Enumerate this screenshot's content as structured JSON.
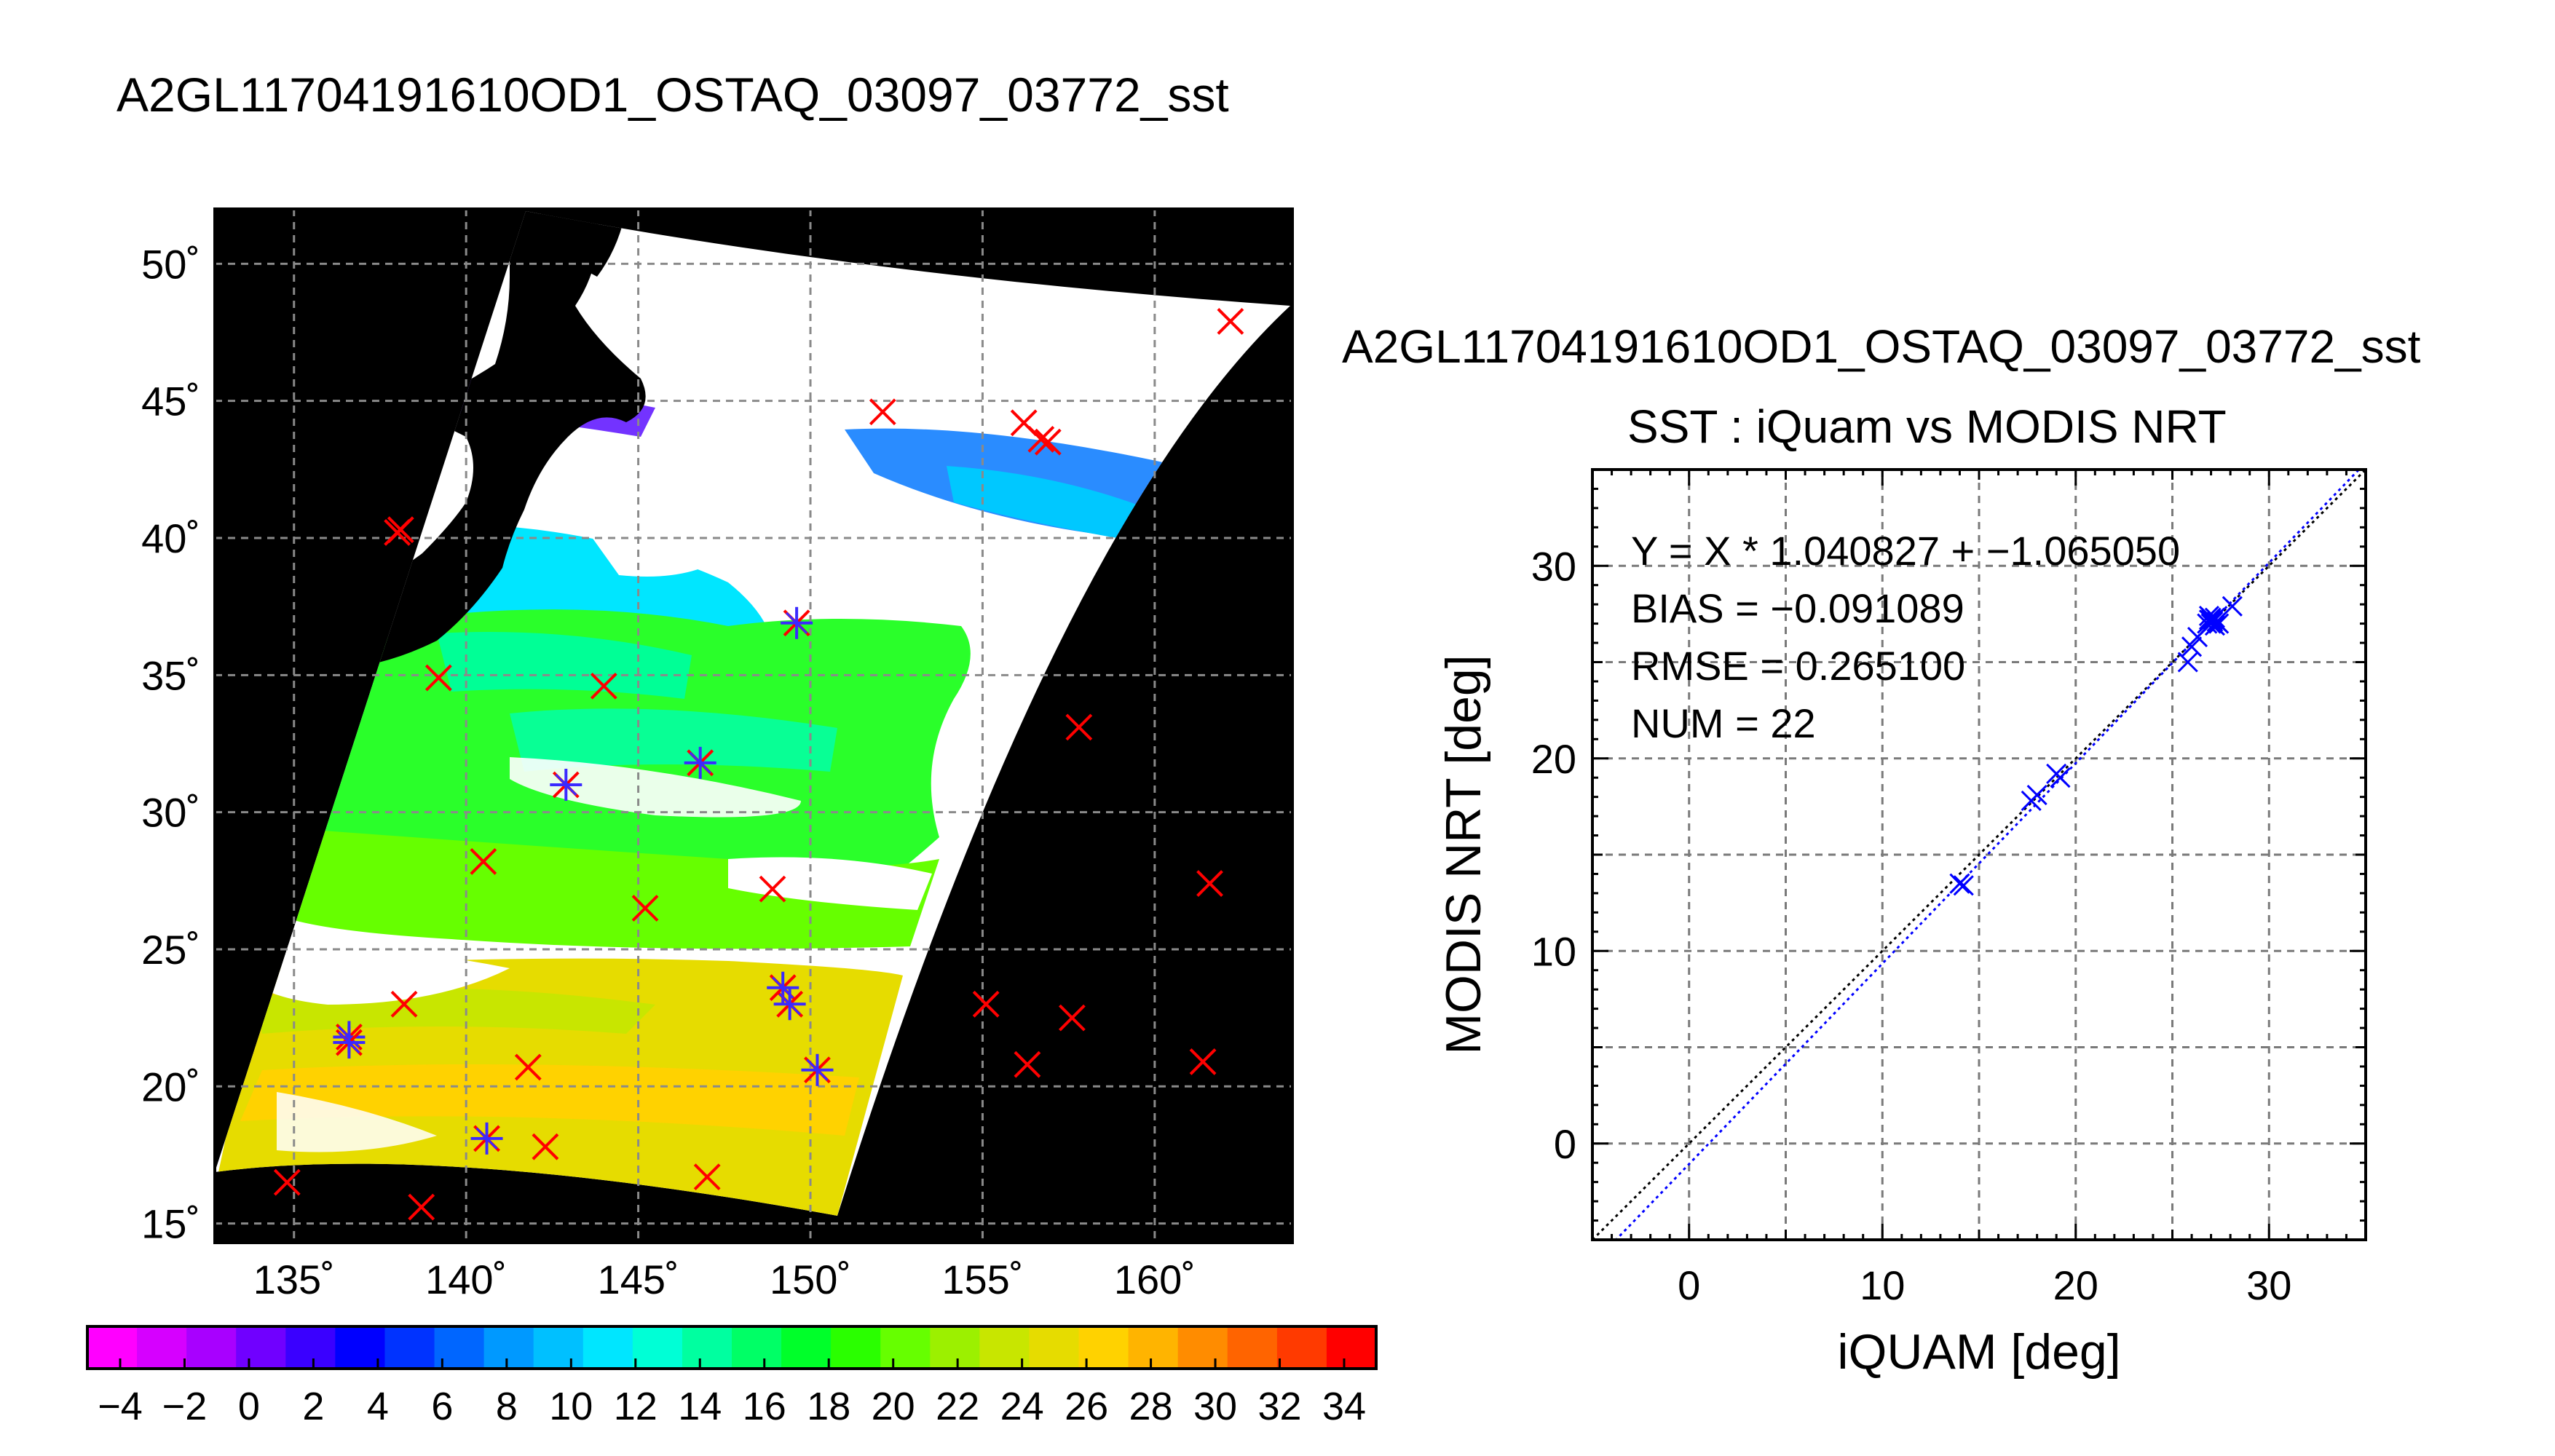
{
  "title": "A2GL11704191610OD1_OSTAQ_03097_03772_sst",
  "map": {
    "lat_ticks": [
      "15˚",
      "20˚",
      "25˚",
      "30˚",
      "35˚",
      "40˚",
      "45˚",
      "50˚"
    ],
    "lat_values": [
      15,
      20,
      25,
      30,
      35,
      40,
      45,
      50
    ],
    "lon_ticks": [
      "135˚",
      "140˚",
      "145˚",
      "150˚",
      "155˚",
      "160˚"
    ],
    "lon_values": [
      135,
      140,
      145,
      150,
      155,
      160
    ],
    "lon_range": [
      132.7,
      164.0
    ],
    "lat_range": [
      14.3,
      52.0
    ],
    "markers_red": [
      [
        162.2,
        47.9
      ],
      [
        152.1,
        44.6
      ],
      [
        156.2,
        44.2
      ],
      [
        156.9,
        43.5
      ],
      [
        156.7,
        43.6
      ],
      [
        138.0,
        40.2
      ],
      [
        138.1,
        40.3
      ],
      [
        139.2,
        34.9
      ],
      [
        144.0,
        34.6
      ],
      [
        157.8,
        33.1
      ],
      [
        140.5,
        28.2
      ],
      [
        145.2,
        26.5
      ],
      [
        148.9,
        27.2
      ],
      [
        161.6,
        27.4
      ],
      [
        138.2,
        23.0
      ],
      [
        155.1,
        23.0
      ],
      [
        157.6,
        22.5
      ],
      [
        156.3,
        20.8
      ],
      [
        161.4,
        20.9
      ],
      [
        141.8,
        20.7
      ],
      [
        142.3,
        17.8
      ],
      [
        147.0,
        16.7
      ],
      [
        134.8,
        16.5
      ],
      [
        138.7,
        15.6
      ]
    ],
    "markers_star": [
      [
        149.6,
        36.9
      ],
      [
        142.9,
        31.0
      ],
      [
        146.8,
        31.8
      ],
      [
        136.6,
        21.8
      ],
      [
        136.6,
        21.6
      ],
      [
        149.2,
        23.6
      ],
      [
        149.4,
        23.0
      ],
      [
        150.2,
        20.6
      ],
      [
        140.6,
        18.1
      ]
    ]
  },
  "colorbar": {
    "tick_labels": [
      "−4",
      "−2",
      "0",
      "2",
      "4",
      "6",
      "8",
      "10",
      "12",
      "14",
      "16",
      "18",
      "20",
      "22",
      "24",
      "26",
      "28",
      "30",
      "32",
      "34"
    ],
    "colors": [
      "#ff00ff",
      "#d600ff",
      "#a800ff",
      "#7000ff",
      "#3a00ff",
      "#0000ff",
      "#0033ff",
      "#0066ff",
      "#0099ff",
      "#00c0ff",
      "#00e6ff",
      "#00ffd6",
      "#00ffa0",
      "#00ff66",
      "#00ff2a",
      "#2aff00",
      "#66ff00",
      "#9cf000",
      "#c8e600",
      "#e6dc00",
      "#ffd200",
      "#ffb400",
      "#ff8c00",
      "#ff6400",
      "#ff3a00",
      "#ff0000"
    ]
  },
  "scatter": {
    "title": "A2GL11704191610OD1_OSTAQ_03097_03772_sst",
    "subtitle": "SST : iQuam vs MODIS NRT",
    "xlabel": "iQUAM [deg]",
    "ylabel": "MODIS NRT [deg]",
    "annotations": [
      "Y = X * 1.040827 + −1.065050",
      "BIAS = −0.091089",
      "RMSE = 0.265100",
      "NUM = 22"
    ]
  },
  "chart_data": {
    "type": "scatter",
    "title": "SST : iQuam vs MODIS NRT",
    "xlabel": "iQUAM [deg]",
    "ylabel": "MODIS NRT [deg]",
    "xlim": [
      -5,
      35
    ],
    "ylim": [
      -5,
      35
    ],
    "x_ticks": [
      0,
      10,
      20,
      30
    ],
    "y_ticks": [
      0,
      10,
      20,
      30
    ],
    "grid": true,
    "series": [
      {
        "x": [
          14.0,
          14.2,
          17.7,
          18.0,
          19.0,
          19.2,
          25.8,
          26.0,
          26.3,
          26.8,
          27.0,
          27.1,
          27.3,
          27.2,
          27.0,
          28.1,
          26.9,
          27.4,
          27.2,
          27.1,
          27.0,
          26.9
        ],
        "y": [
          13.5,
          13.4,
          17.8,
          18.1,
          19.2,
          19.0,
          25.0,
          25.8,
          26.3,
          27.0,
          27.3,
          27.2,
          27.1,
          26.9,
          27.0,
          27.9,
          27.2,
          27.0,
          27.3,
          27.1,
          27.2,
          27.4
        ]
      }
    ],
    "fit_line": {
      "slope": 1.040827,
      "intercept": -1.06505
    },
    "one_to_one_line": {
      "slope": 1,
      "intercept": 0
    },
    "annotations": [
      "Y = X * 1.040827 + −1.065050",
      "BIAS = −0.091089",
      "RMSE = 0.265100",
      "NUM = 22"
    ]
  }
}
